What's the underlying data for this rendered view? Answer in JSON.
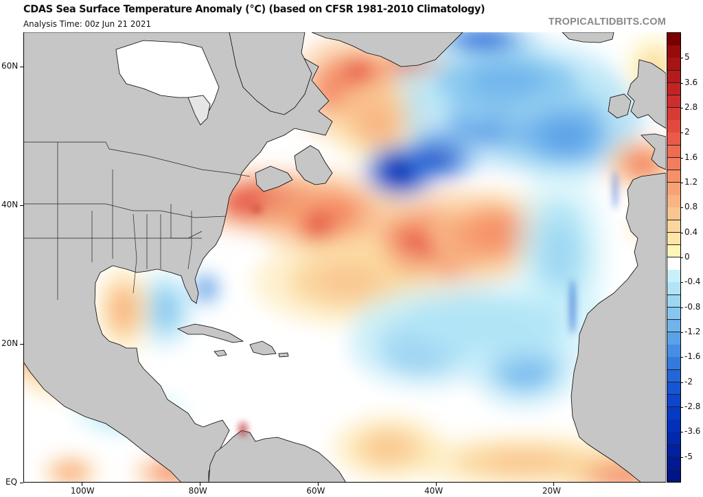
{
  "header": {
    "title": "CDAS Sea Surface Temperature Anomaly (°C) (based on CFSR 1981-2010 Climatology)",
    "analysis_time": "Analysis Time: 00z Jun 21 2021",
    "brand": "TROPICALTIDBITS.COM"
  },
  "map": {
    "projection": "equirectangular",
    "lon_range": [
      -110,
      -1
    ],
    "lat_range": [
      0,
      65
    ],
    "land_color": "#c6c6c6",
    "ice_color": "#ffffff",
    "coastline_color": "#000000",
    "x_ticks": [
      {
        "lon": -100,
        "label": "100W"
      },
      {
        "lon": -80,
        "label": "80W"
      },
      {
        "lon": -60,
        "label": "60W"
      },
      {
        "lon": -40,
        "label": "40W"
      },
      {
        "lon": -20,
        "label": "20W"
      }
    ],
    "y_ticks": [
      {
        "lat": 60,
        "label": "60N"
      },
      {
        "lat": 40,
        "label": "40N"
      },
      {
        "lat": 20,
        "label": "20N"
      },
      {
        "lat": 0,
        "label": "EQ"
      }
    ],
    "anomaly_features": [
      {
        "name": "gulf-stream-warm",
        "lon": -68,
        "lat": 40.5,
        "rlon": 9,
        "rlat": 3,
        "value": 2.4
      },
      {
        "name": "nw-atlantic-warm",
        "lon": -58,
        "lat": 38.5,
        "rlon": 8,
        "rlat": 4,
        "value": 1.6
      },
      {
        "name": "warm-eddy-south",
        "lon": -60,
        "lat": 37,
        "rlon": 2.5,
        "rlat": 2,
        "value": 2.6
      },
      {
        "name": "labrador-sea-warm",
        "lon": -54,
        "lat": 57,
        "rlon": 7,
        "rlat": 5,
        "value": 1.8
      },
      {
        "name": "labrador-sea-core",
        "lon": -53,
        "lat": 59,
        "rlon": 3,
        "rlat": 2,
        "value": 2.4
      },
      {
        "name": "irminger-warm",
        "lon": -50,
        "lat": 52,
        "rlon": 5,
        "rlat": 4,
        "value": 1.0
      },
      {
        "name": "greenland-sw-warm",
        "lon": -44,
        "lat": 60.5,
        "rlon": 4,
        "rlat": 1.5,
        "value": 2.2
      },
      {
        "name": "central-atl-warm",
        "lon": -40,
        "lat": 34.5,
        "rlon": 10,
        "rlat": 5,
        "value": 1.8
      },
      {
        "name": "central-atl-warm-core",
        "lon": -44,
        "lat": 33.5,
        "rlon": 4,
        "rlat": 3,
        "value": 2.4
      },
      {
        "name": "azores-warm",
        "lon": -30,
        "lat": 36,
        "rlon": 7,
        "rlat": 4,
        "value": 1.4
      },
      {
        "name": "subtropical-warm",
        "lon": -55,
        "lat": 29,
        "rlon": 10,
        "rlat": 4,
        "value": 0.8
      },
      {
        "name": "cold-pool-core",
        "lon": -46,
        "lat": 45,
        "rlon": 4,
        "rlat": 2.5,
        "value": -3.6
      },
      {
        "name": "cold-pool-arm",
        "lon": -39,
        "lat": 47.5,
        "rlon": 4,
        "rlat": 2.5,
        "value": -3.0
      },
      {
        "name": "subpolar-cold",
        "lon": -25,
        "lat": 53,
        "rlon": 13,
        "rlat": 5,
        "value": -1.4
      },
      {
        "name": "subpolar-cold-north",
        "lon": -28,
        "lat": 58,
        "rlon": 12,
        "rlat": 4,
        "value": -1.0
      },
      {
        "name": "subpolar-cold-east",
        "lon": -18,
        "lat": 50,
        "rlon": 7,
        "rlat": 4,
        "value": -1.2
      },
      {
        "name": "canary-cold",
        "lon": -19,
        "lat": 33,
        "rlon": 5,
        "rlat": 8,
        "value": -0.6
      },
      {
        "name": "tropical-cold-west",
        "lon": -42,
        "lat": 20,
        "rlon": 8,
        "rlat": 4,
        "value": -1.0
      },
      {
        "name": "tropical-cold-east",
        "lon": -25,
        "lat": 17,
        "rlon": 6,
        "rlat": 4,
        "value": -1.0
      },
      {
        "name": "tropical-cold-band",
        "lon": -32,
        "lat": 23,
        "rlon": 14,
        "rlat": 4,
        "value": -0.5
      },
      {
        "name": "florida-cold",
        "lon": -79,
        "lat": 28,
        "rlon": 1.5,
        "rlat": 1.5,
        "value": -1.8
      },
      {
        "name": "gulf-mexico-cold",
        "lon": -86,
        "lat": 25,
        "rlon": 3,
        "rlat": 3.5,
        "value": -0.8
      },
      {
        "name": "gulf-mexico-warm",
        "lon": -93,
        "lat": 25,
        "rlon": 3,
        "rlat": 4,
        "value": 1.0
      },
      {
        "name": "east-pac-warm",
        "lon": -107,
        "lat": 20,
        "rlon": 4,
        "rlat": 4,
        "value": 1.8
      },
      {
        "name": "east-pac-warm-south",
        "lon": -100,
        "lat": 15,
        "rlon": 6,
        "rlat": 2,
        "value": 0.8
      },
      {
        "name": "east-pac-cold",
        "lon": -92,
        "lat": 10,
        "rlon": 6,
        "rlat": 2,
        "value": -0.6
      },
      {
        "name": "east-pac-warm-eq",
        "lon": -85,
        "lat": 1.5,
        "rlon": 4,
        "rlat": 1.5,
        "value": 1.6
      },
      {
        "name": "east-pac-warm-eq2",
        "lon": -102,
        "lat": 1.5,
        "rlon": 3,
        "rlat": 1.5,
        "value": 1.2
      },
      {
        "name": "gulf-of-guinea-warm",
        "lon": -10,
        "lat": 1.5,
        "rlon": 6,
        "rlat": 2,
        "value": 2.0
      },
      {
        "name": "eq-atl-warm",
        "lon": -25,
        "lat": 3,
        "rlon": 12,
        "rlat": 2.5,
        "value": 0.8
      },
      {
        "name": "brazil-warm",
        "lon": -48,
        "lat": 5,
        "rlon": 6,
        "rlat": 3,
        "value": 0.8
      },
      {
        "name": "biscay-warm",
        "lon": -5,
        "lat": 46,
        "rlon": 4,
        "rlat": 2.5,
        "value": 1.6
      },
      {
        "name": "mediterranean-warm",
        "lon": -3,
        "lat": 36.5,
        "rlon": 3,
        "rlat": 1,
        "value": 0.8
      },
      {
        "name": "norway-sea-warm",
        "lon": -3,
        "lat": 60,
        "rlon": 3,
        "rlat": 3,
        "value": 0.6
      },
      {
        "name": "north-greenland-cold",
        "lon": -32,
        "lat": 64,
        "rlon": 6,
        "rlat": 1.5,
        "value": -2.0
      }
    ]
  },
  "colorbar": {
    "unit": "°C",
    "colors_top_to_bottom": [
      "#7a0000",
      "#980b0b",
      "#a61414",
      "#b51b1b",
      "#c22424",
      "#cd2d2d",
      "#d83a34",
      "#e34a3e",
      "#ea5a48",
      "#ef6b52",
      "#f27d5c",
      "#f59068",
      "#f7a274",
      "#f8b482",
      "#f9c590",
      "#fbd69c",
      "#fde6a8",
      "#fef5b6",
      "#ffffff",
      "#c8f0fa",
      "#b0e4f6",
      "#9cd6f3",
      "#86c6f0",
      "#70b4ec",
      "#5ba1e8",
      "#478de3",
      "#337add",
      "#2266d8",
      "#1656d4",
      "#0c46cc",
      "#0639c4",
      "#0430b8",
      "#0228ac",
      "#0220a0",
      "#011995",
      "#01138a"
    ],
    "labels": [
      {
        "value": "5",
        "index": 2
      },
      {
        "value": "3.6",
        "index": 4
      },
      {
        "value": "2.8",
        "index": 6
      },
      {
        "value": "2",
        "index": 8
      },
      {
        "value": "1.6",
        "index": 10
      },
      {
        "value": "1.2",
        "index": 12
      },
      {
        "value": "0.8",
        "index": 14
      },
      {
        "value": "0.4",
        "index": 16
      },
      {
        "value": "0",
        "index": 18
      },
      {
        "value": "-0.4",
        "index": 20
      },
      {
        "value": "-0.8",
        "index": 22
      },
      {
        "value": "-1.2",
        "index": 24
      },
      {
        "value": "-1.6",
        "index": 26
      },
      {
        "value": "-2",
        "index": 28
      },
      {
        "value": "-2.8",
        "index": 30
      },
      {
        "value": "-3.6",
        "index": 32
      },
      {
        "value": "-5",
        "index": 34
      }
    ]
  }
}
